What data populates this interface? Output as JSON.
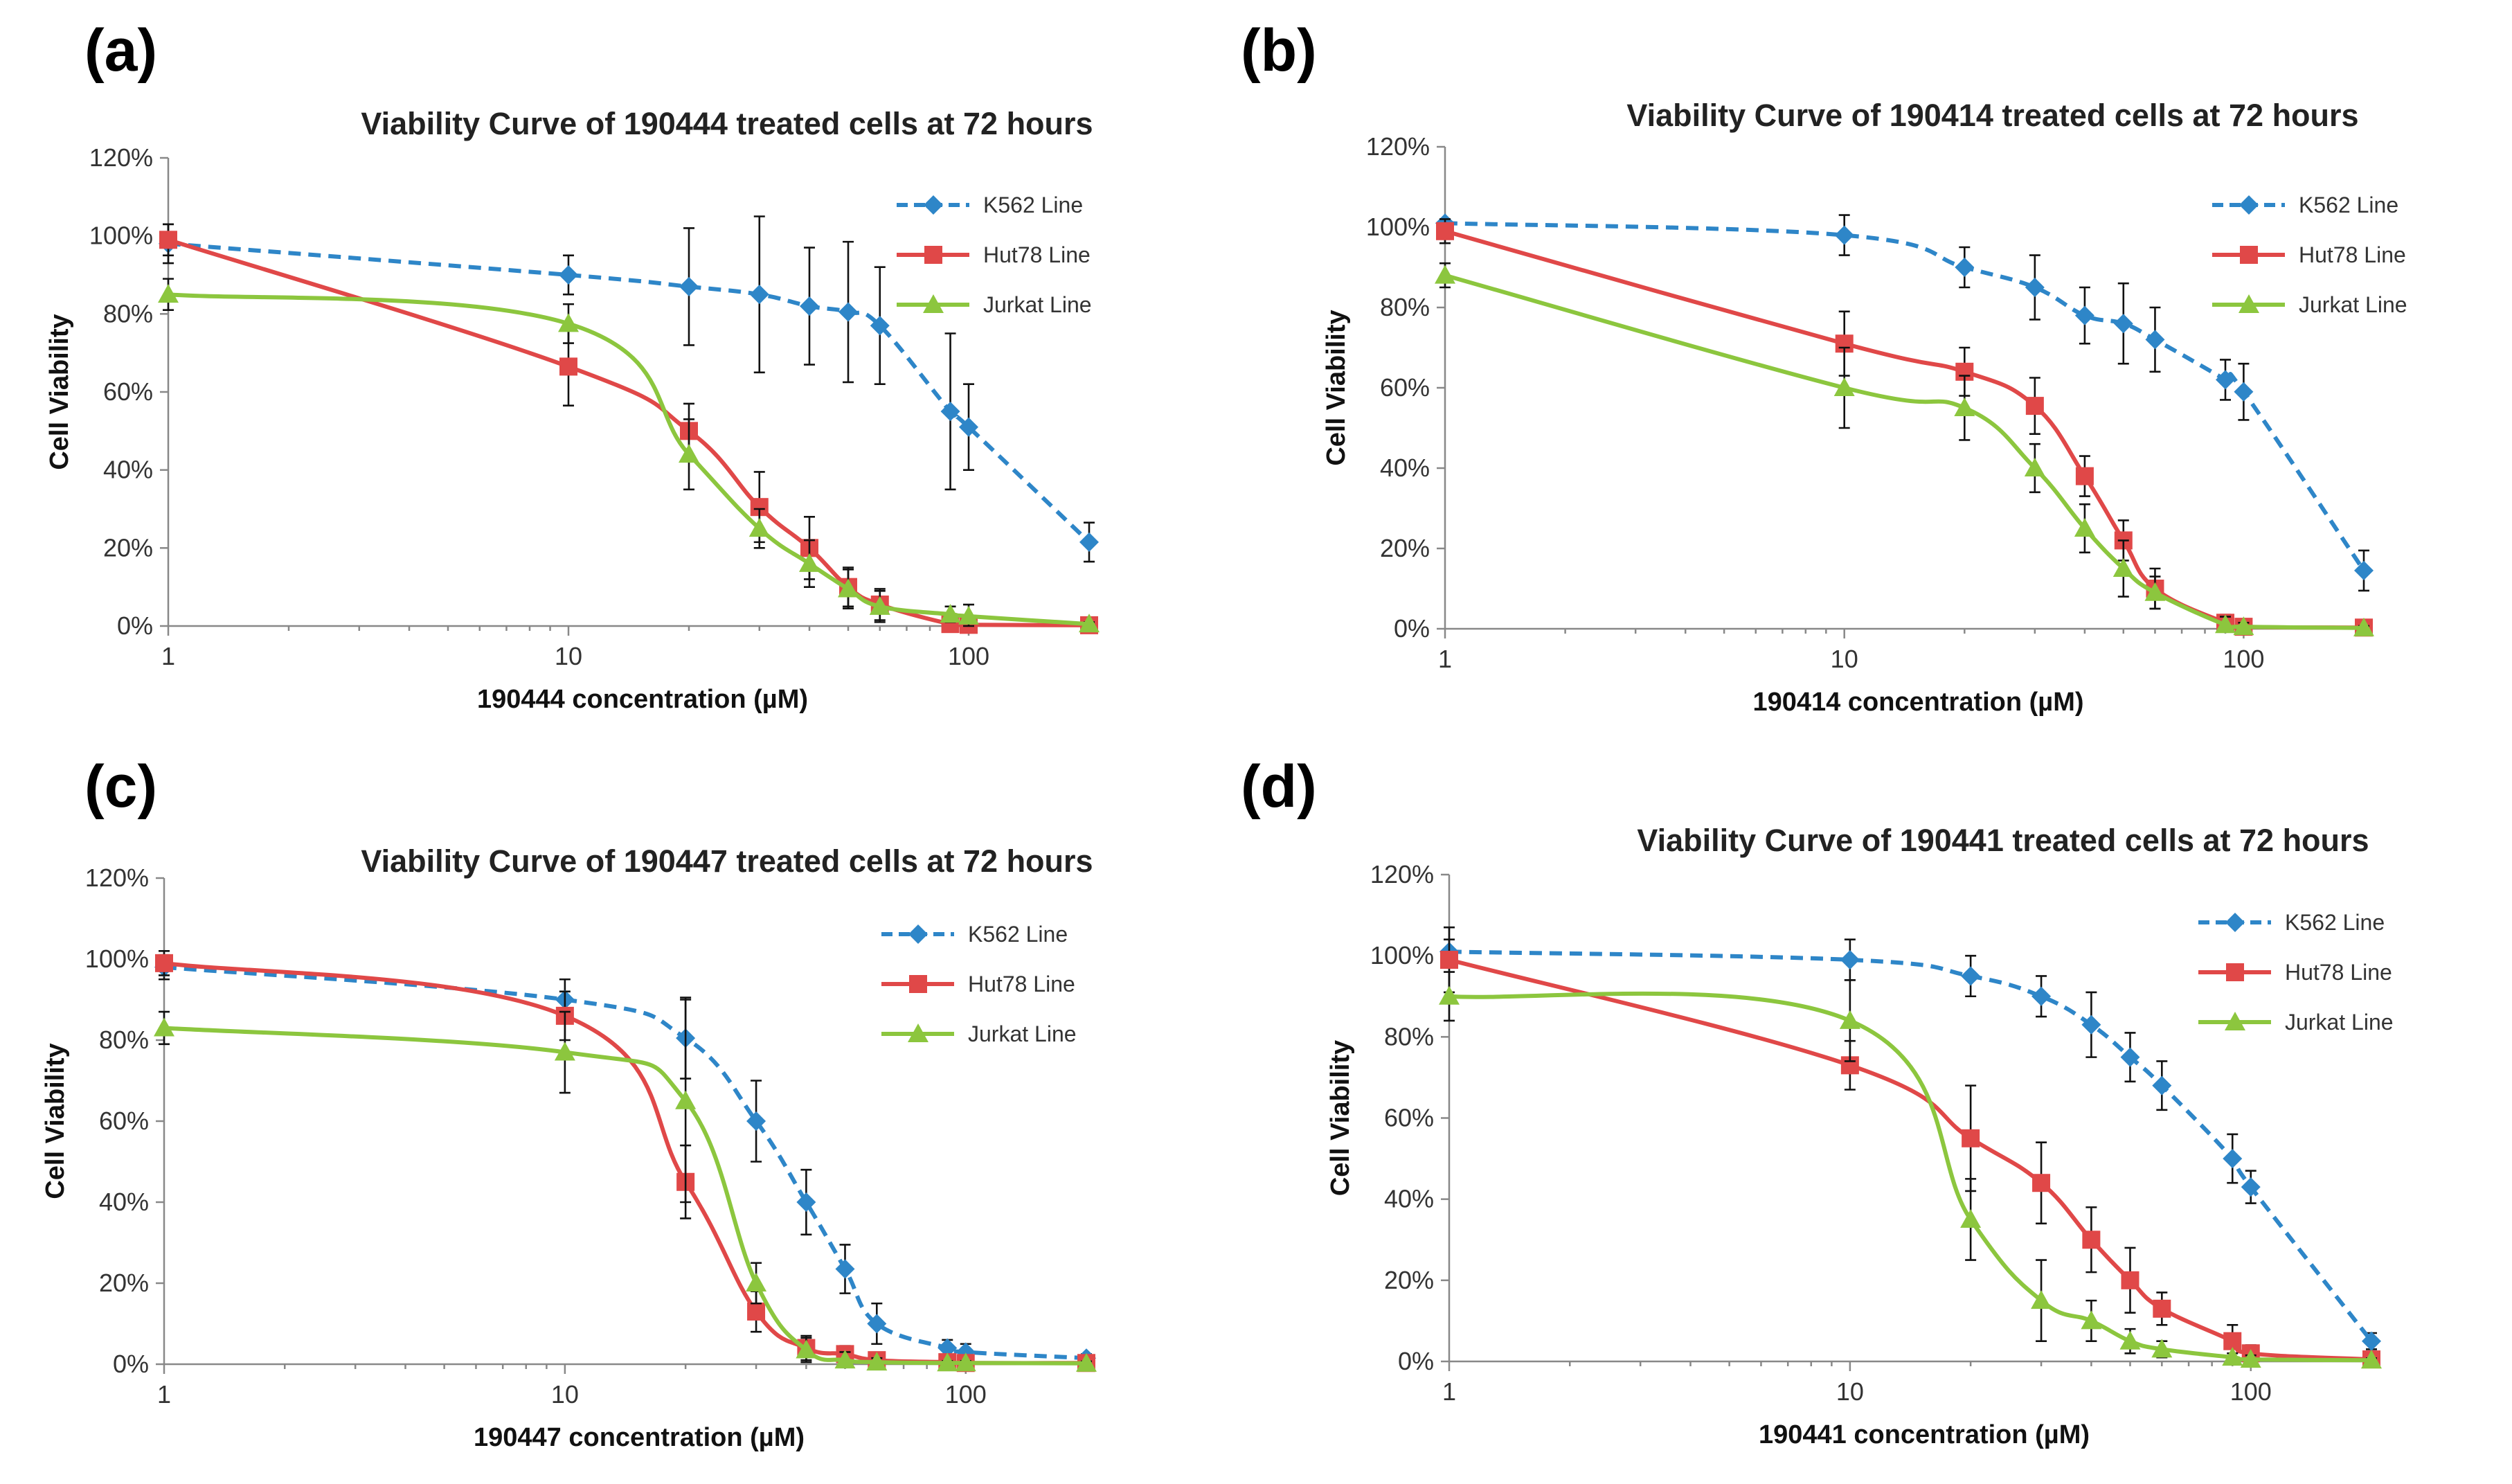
{
  "figure": {
    "panels": [
      {
        "label": "(a)"
      },
      {
        "label": "(b)"
      },
      {
        "label": "(c)"
      },
      {
        "label": "(d)"
      }
    ]
  },
  "chart_data": [
    {
      "type": "line",
      "panel": "(a)",
      "title": "Viability Curve of 190444 treated cells at 72 hours",
      "xlabel": "190444 concentration (µM)",
      "ylabel": "Cell Viability",
      "xscale": "log",
      "xlim": [
        1,
        200
      ],
      "ylim": [
        0,
        120
      ],
      "xticks": [
        "1",
        "10",
        "100"
      ],
      "yticks": [
        "0%",
        "20%",
        "40%",
        "60%",
        "80%",
        "100%",
        "120%"
      ],
      "legend_position": "top-right",
      "series": [
        {
          "name": "K562 Line",
          "color": "#2e86c8",
          "marker": "diamond",
          "dashed": true,
          "x": [
            1,
            10,
            20,
            30,
            40,
            50,
            60,
            90,
            100,
            200
          ],
          "y": [
            98,
            90,
            87,
            85,
            82,
            80.5,
            77,
            55,
            51,
            21.5
          ],
          "err": [
            5,
            5,
            15,
            20,
            15,
            18,
            15,
            20,
            11,
            5
          ]
        },
        {
          "name": "Hut78 Line",
          "color": "#e04848",
          "marker": "square",
          "dashed": false,
          "x": [
            1,
            10,
            20,
            30,
            40,
            50,
            60,
            90,
            100,
            200
          ],
          "y": [
            99,
            66.5,
            50,
            30.5,
            20,
            10,
            5.5,
            0.5,
            0.3,
            0.2
          ],
          "err": [
            4,
            10,
            7,
            9,
            8,
            5,
            4,
            1,
            1,
            0.5
          ]
        },
        {
          "name": "Jurkat Line",
          "color": "#8cc63e",
          "marker": "triangle",
          "dashed": false,
          "x": [
            1,
            10,
            20,
            30,
            40,
            50,
            60,
            90,
            100,
            200
          ],
          "y": [
            85,
            77.5,
            44,
            25,
            16,
            9.5,
            5,
            3,
            2.5,
            0.5
          ],
          "err": [
            4,
            5,
            9,
            5,
            6,
            5,
            4,
            2,
            3,
            0.5
          ]
        }
      ]
    },
    {
      "type": "line",
      "panel": "(b)",
      "title": "Viability Curve of 190414 treated cells at 72 hours",
      "xlabel": "190414 concentration (µM)",
      "ylabel": "Cell Viability",
      "xscale": "log",
      "xlim": [
        1,
        200
      ],
      "ylim": [
        0,
        120
      ],
      "xticks": [
        "1",
        "10",
        "100"
      ],
      "yticks": [
        "0%",
        "20%",
        "40%",
        "60%",
        "80%",
        "100%",
        "120%"
      ],
      "legend_position": "top-right",
      "series": [
        {
          "name": "K562 Line",
          "color": "#2e86c8",
          "marker": "diamond",
          "dashed": true,
          "x": [
            1,
            10,
            20,
            30,
            40,
            50,
            60,
            90,
            100,
            200
          ],
          "y": [
            101,
            98,
            90,
            85,
            78,
            76,
            72,
            62,
            59,
            14.5
          ],
          "err": [
            0,
            5,
            5,
            8,
            7,
            10,
            8,
            5,
            7,
            5
          ]
        },
        {
          "name": "Hut78 Line",
          "color": "#e04848",
          "marker": "square",
          "dashed": false,
          "x": [
            1,
            10,
            20,
            30,
            40,
            50,
            60,
            90,
            100,
            200
          ],
          "y": [
            99,
            71,
            64,
            55.5,
            38,
            22,
            10,
            1.5,
            0.5,
            0.3
          ],
          "err": [
            3,
            8,
            6,
            7,
            5,
            5,
            5,
            2,
            1,
            0.5
          ]
        },
        {
          "name": "Jurkat Line",
          "color": "#8cc63e",
          "marker": "triangle",
          "dashed": false,
          "x": [
            1,
            10,
            20,
            30,
            40,
            50,
            60,
            90,
            100,
            200
          ],
          "y": [
            88,
            60,
            55,
            40,
            25,
            15,
            9,
            1,
            0.5,
            0.2
          ],
          "err": [
            3,
            10,
            8,
            6,
            6,
            7,
            4,
            2,
            1,
            0.5
          ]
        }
      ]
    },
    {
      "type": "line",
      "panel": "(c)",
      "title": "Viability Curve of 190447 treated cells at 72 hours",
      "xlabel": "190447 concentration (µM)",
      "ylabel": "Cell Viability",
      "xscale": "log",
      "xlim": [
        1,
        200
      ],
      "ylim": [
        0,
        120
      ],
      "xticks": [
        "1",
        "10",
        "100"
      ],
      "yticks": [
        "0%",
        "20%",
        "40%",
        "60%",
        "80%",
        "100%",
        "120%"
      ],
      "legend_position": "top-right",
      "series": [
        {
          "name": "K562 Line",
          "color": "#2e86c8",
          "marker": "diamond",
          "dashed": true,
          "x": [
            1,
            10,
            20,
            30,
            40,
            50,
            60,
            90,
            100,
            200
          ],
          "y": [
            98,
            90,
            80.5,
            60,
            40,
            23.5,
            10,
            4,
            3,
            1.5
          ],
          "err": [
            3,
            5,
            10,
            10,
            8,
            6,
            5,
            2,
            2,
            1
          ]
        },
        {
          "name": "Hut78 Line",
          "color": "#e04848",
          "marker": "square",
          "dashed": false,
          "x": [
            1,
            10,
            20,
            30,
            40,
            50,
            60,
            90,
            100,
            200
          ],
          "y": [
            99,
            86,
            45,
            13,
            4,
            2.5,
            1,
            0.5,
            0.3,
            0.3
          ],
          "err": [
            3,
            6,
            9,
            5,
            3,
            2,
            1,
            1,
            0.5,
            0.5
          ]
        },
        {
          "name": "Jurkat Line",
          "color": "#8cc63e",
          "marker": "triangle",
          "dashed": false,
          "x": [
            1,
            10,
            20,
            30,
            40,
            50,
            60,
            90,
            100,
            200
          ],
          "y": [
            83,
            77,
            65,
            20,
            3.5,
            1,
            0.5,
            0.3,
            0.3,
            0.2
          ],
          "err": [
            4,
            10,
            25,
            5,
            3,
            2,
            1,
            0.5,
            0.5,
            0.5
          ]
        }
      ]
    },
    {
      "type": "line",
      "panel": "(d)",
      "title": "Viability Curve of 190441 treated cells at 72 hours",
      "xlabel": "190441 concentration (µM)",
      "ylabel": "Cell Viability",
      "xscale": "log",
      "xlim": [
        1,
        200
      ],
      "ylim": [
        0,
        120
      ],
      "xticks": [
        "1",
        "10",
        "100"
      ],
      "yticks": [
        "0%",
        "20%",
        "40%",
        "60%",
        "80%",
        "100%",
        "120%"
      ],
      "legend_position": "top-right",
      "series": [
        {
          "name": "K562 Line",
          "color": "#2e86c8",
          "marker": "diamond",
          "dashed": true,
          "x": [
            1,
            10,
            20,
            30,
            40,
            50,
            60,
            90,
            100,
            200
          ],
          "y": [
            101,
            99,
            95,
            90,
            83,
            75,
            68,
            50,
            43,
            5
          ],
          "err": [
            3,
            5,
            5,
            5,
            8,
            6,
            6,
            6,
            4,
            2
          ]
        },
        {
          "name": "Hut78 Line",
          "color": "#e04848",
          "marker": "square",
          "dashed": false,
          "x": [
            1,
            10,
            20,
            30,
            40,
            50,
            60,
            90,
            100,
            200
          ],
          "y": [
            99,
            73,
            55,
            44,
            30,
            20,
            13,
            5,
            2,
            0.5
          ],
          "err": [
            8,
            6,
            13,
            10,
            8,
            8,
            4,
            4,
            2,
            0.5
          ]
        },
        {
          "name": "Jurkat Line",
          "color": "#8cc63e",
          "marker": "triangle",
          "dashed": false,
          "x": [
            1,
            10,
            20,
            30,
            40,
            50,
            60,
            90,
            100,
            200
          ],
          "y": [
            90,
            84,
            35,
            15,
            10,
            5,
            3,
            1,
            0.5,
            0.3
          ],
          "err": [
            6,
            10,
            10,
            10,
            5,
            3,
            2,
            1,
            1,
            0.5
          ]
        }
      ]
    }
  ]
}
